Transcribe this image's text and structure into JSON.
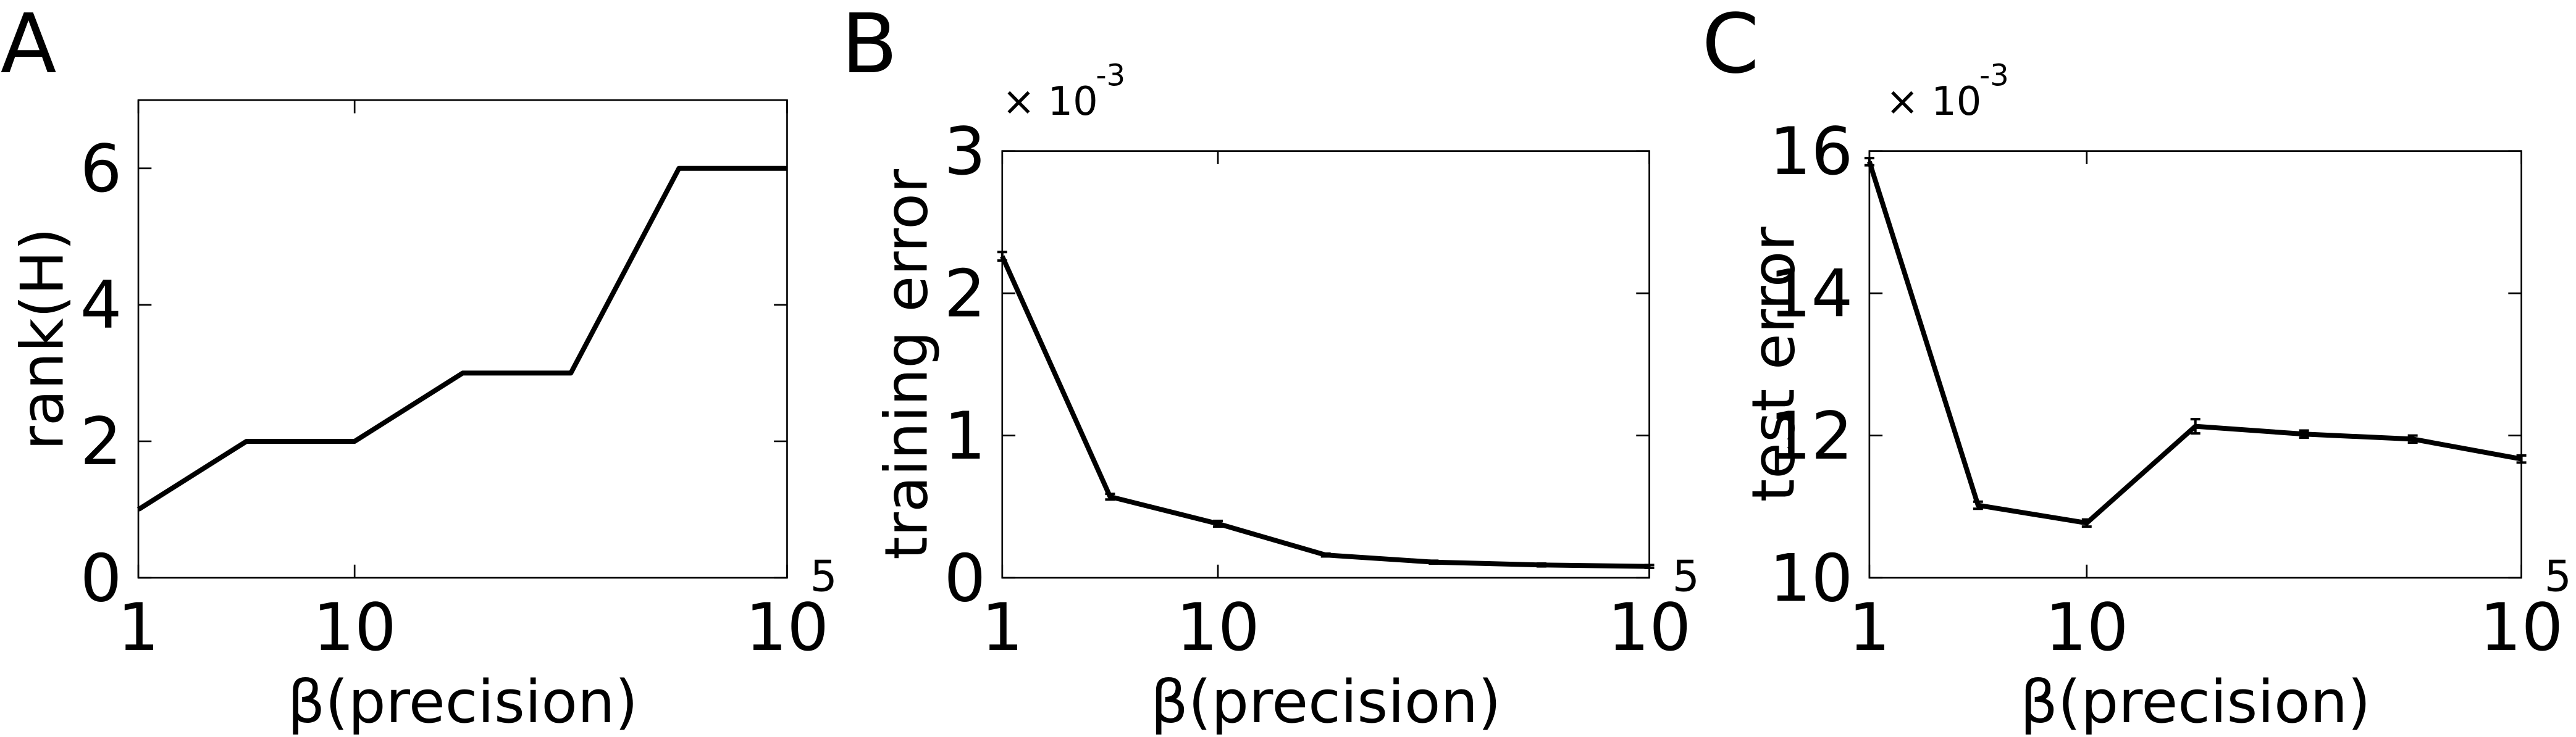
{
  "chart_data": [
    {
      "type": "line",
      "panel_label": "A",
      "ylabel": "rank(H)",
      "xlabel": "β(precision)",
      "categories": [
        "1",
        null,
        "10",
        null,
        null,
        null,
        {
          "label": "10",
          "superscript": "5"
        }
      ],
      "series": [
        {
          "color": "#000000",
          "values": [
            1,
            2,
            2,
            3,
            3,
            6,
            6
          ]
        }
      ],
      "ylim": [
        0,
        7
      ],
      "yticks": [
        0,
        2,
        4,
        6
      ]
    },
    {
      "type": "line",
      "panel_label": "B",
      "ylabel": "training error",
      "xlabel": "β(precision)",
      "multiplier": "× 10",
      "multiplier_exponent": "-3",
      "categories": [
        "1",
        null,
        "10",
        null,
        null,
        null,
        {
          "label": "10",
          "superscript": "5"
        }
      ],
      "series": [
        {
          "color": "#000000",
          "values": [
            2.26,
            0.57,
            0.38,
            0.16,
            0.11,
            0.09,
            0.08
          ],
          "errors": [
            0.03,
            0.02,
            0.02,
            0.01,
            0.01,
            0.01,
            0.01
          ]
        }
      ],
      "ylim": [
        0,
        3
      ],
      "yticks": [
        0,
        1,
        2,
        3
      ]
    },
    {
      "type": "line",
      "panel_label": "C",
      "ylabel": "test error",
      "xlabel": "β(precision)",
      "multiplier": "× 10",
      "multiplier_exponent": "-3",
      "categories": [
        "1",
        null,
        "10",
        null,
        null,
        null,
        {
          "label": "10",
          "superscript": "5"
        }
      ],
      "series": [
        {
          "color": "#000000",
          "values": [
            15.85,
            11.02,
            10.77,
            12.13,
            12.02,
            11.95,
            11.67
          ],
          "errors": [
            0.05,
            0.05,
            0.05,
            0.1,
            0.05,
            0.05,
            0.05
          ]
        }
      ],
      "ylim": [
        10,
        16
      ],
      "yticks": [
        10,
        12,
        14,
        16
      ]
    }
  ]
}
